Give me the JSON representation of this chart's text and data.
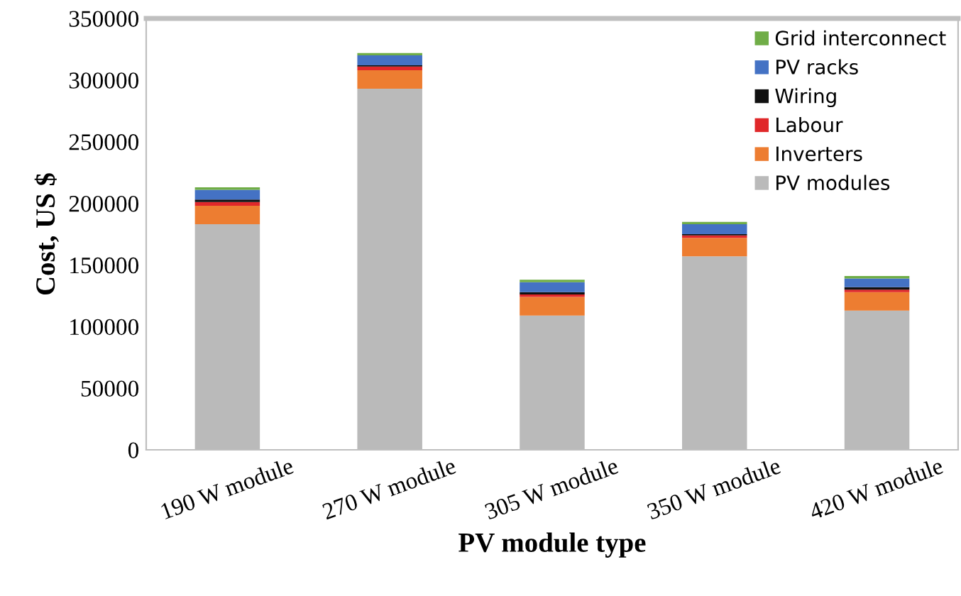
{
  "chart_data": {
    "type": "bar",
    "stacked": true,
    "xlabel": "PV module type",
    "ylabel": "Cost, US $",
    "categories": [
      "190 W module",
      "270 W module",
      "305 W module",
      "350 W module",
      "420 W module"
    ],
    "series": [
      {
        "name": "PV modules",
        "color": "#bababa",
        "values": [
          183000,
          293000,
          109000,
          157000,
          113000
        ]
      },
      {
        "name": "Inverters",
        "color": "#ed7d31",
        "values": [
          15000,
          15000,
          15000,
          15000,
          15000
        ]
      },
      {
        "name": "Labour",
        "color": "#e0282a",
        "values": [
          3000,
          3000,
          2000,
          2000,
          2000
        ]
      },
      {
        "name": "Wiring",
        "color": "#111111",
        "values": [
          2000,
          1000,
          2000,
          1000,
          2000
        ]
      },
      {
        "name": "PV racks",
        "color": "#4472c4",
        "values": [
          8000,
          8000,
          8000,
          8000,
          7000
        ]
      },
      {
        "name": "Grid interconnect",
        "color": "#70ad47",
        "values": [
          2000,
          2000,
          2000,
          2000,
          2000
        ]
      }
    ],
    "ylim": [
      0,
      350000
    ],
    "yticks": [
      0,
      50000,
      100000,
      150000,
      200000,
      250000,
      300000,
      350000
    ],
    "legend": "top right",
    "grid": false
  }
}
